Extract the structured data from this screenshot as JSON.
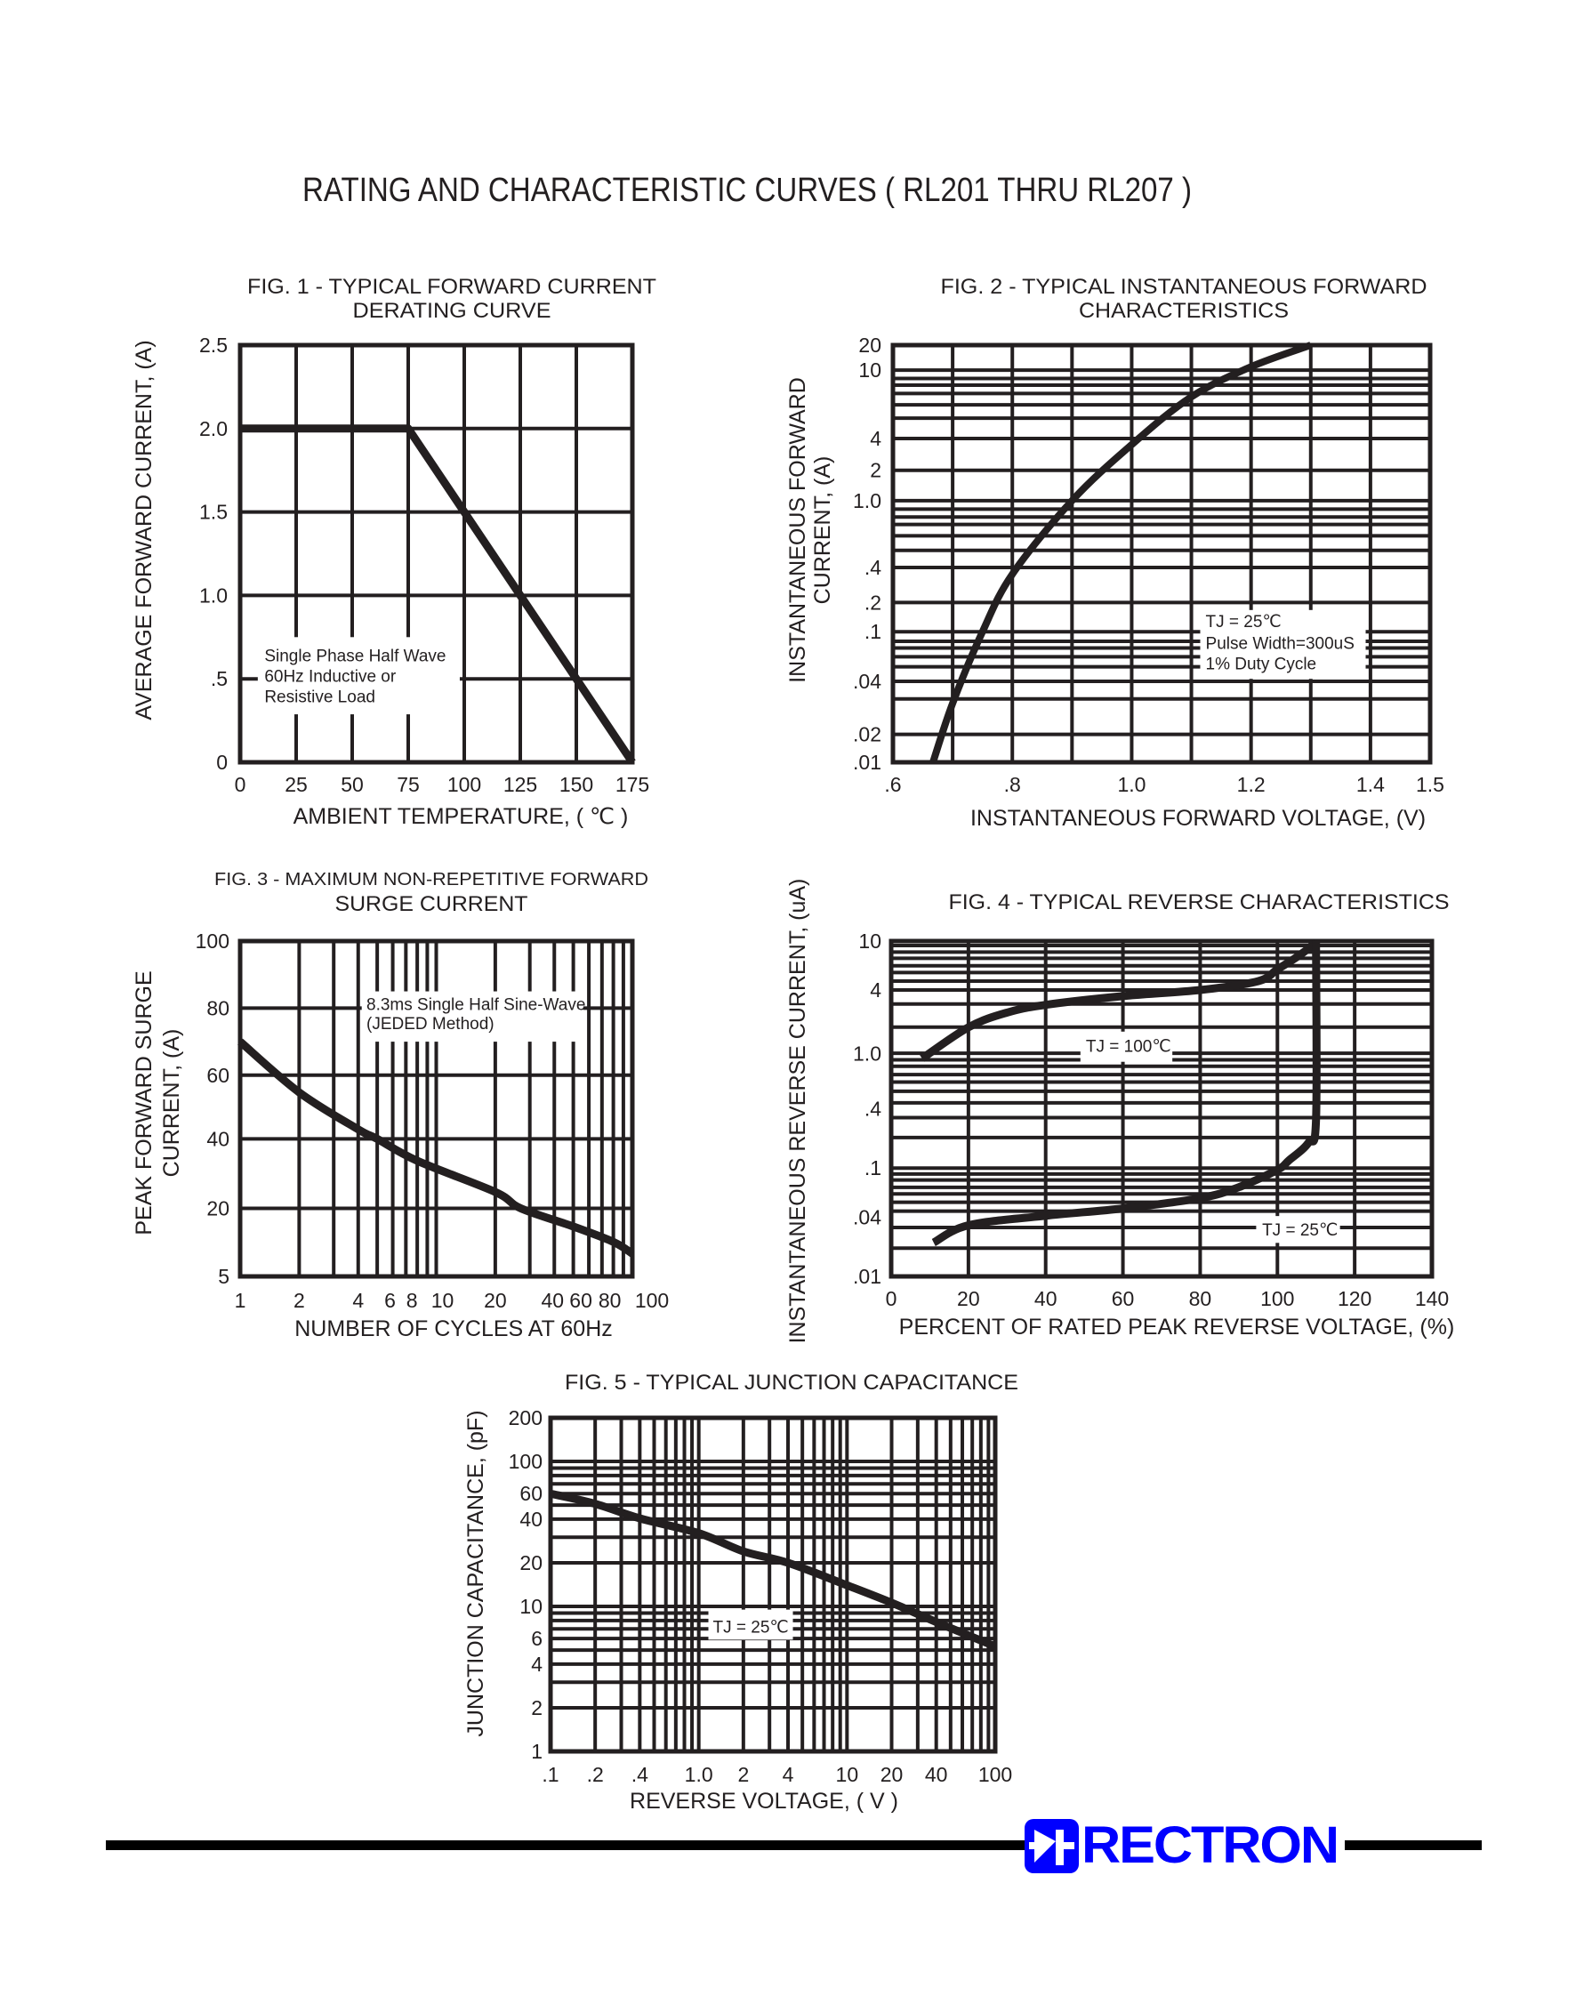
{
  "page_title": "RATING AND CHARACTERISTIC CURVES ( RL201 THRU RL207 )",
  "logo": {
    "text": "RECTRON",
    "color": "#0000ff",
    "icon": "diode-icon"
  },
  "colors": {
    "ink": "#231f20",
    "logo": "#0000ff"
  },
  "chart_data": [
    {
      "type": "line",
      "title": [
        "FIG. 1 - TYPICAL FORWARD CURRENT",
        "DERATING CURVE"
      ],
      "xlabel": "AMBIENT TEMPERATURE, ( ℃ )",
      "ylabel": [
        "AVERAGE FORWARD CURRENT, (A)"
      ],
      "x_scale": "linear",
      "y_scale": "linear",
      "xlim": [
        0,
        175
      ],
      "ylim": [
        0,
        2.5
      ],
      "grid": true,
      "xticks": [
        0,
        25,
        50,
        75,
        100,
        125,
        150,
        175
      ],
      "xtick_labels": [
        "0",
        "25",
        "50",
        "75",
        "100",
        "125",
        "150",
        "175"
      ],
      "yticks": [
        0,
        0.5,
        1.0,
        1.5,
        2.0,
        2.5
      ],
      "ytick_labels": [
        "0",
        ".5",
        "1.0",
        "1.5",
        "2.0",
        "2.5"
      ],
      "annotations": [
        [
          "Single Phase Half Wave",
          "60Hz Inductive or",
          "Resistive Load"
        ]
      ],
      "series": [
        {
          "x": [
            0,
            75,
            175
          ],
          "y": [
            2.0,
            2.0,
            0
          ]
        }
      ]
    },
    {
      "type": "line",
      "title": [
        "FIG. 2 - TYPICAL INSTANTANEOUS FORWARD",
        "CHARACTERISTICS"
      ],
      "xlabel": "INSTANTANEOUS FORWARD VOLTAGE, (V)",
      "ylabel": [
        "INSTANTANEOUS FORWARD",
        "CURRENT, (A)"
      ],
      "x_scale": "linear",
      "y_scale": "log",
      "xlim": [
        0.6,
        1.5
      ],
      "ylim": [
        0.01,
        20
      ],
      "grid": true,
      "xticks": [
        0.6,
        0.8,
        1.0,
        1.2,
        1.4,
        1.5
      ],
      "xtick_labels": [
        ".6",
        ".8",
        "1.0",
        "1.2",
        "1.4",
        "1.5"
      ],
      "yticks": [
        20,
        10,
        4,
        2,
        1.0,
        0.4,
        0.2,
        0.1,
        0.04,
        0.02,
        0.01
      ],
      "ytick_labels": [
        "20",
        "10",
        "4",
        "2",
        "1.0",
        ".4",
        ".2",
        ".1",
        ".04",
        ".02",
        ".01"
      ],
      "annotations": [
        [
          "TJ = 25℃",
          "Pulse Width=300uS",
          "1% Duty Cycle"
        ]
      ],
      "series": [
        {
          "x": [
            0.667,
            0.7,
            0.75,
            0.8,
            0.9,
            1.0,
            1.1,
            1.2,
            1.3
          ],
          "y": [
            0.01,
            0.03,
            0.1,
            0.35,
            1.0,
            3.5,
            7,
            11,
            20
          ]
        }
      ]
    },
    {
      "type": "line",
      "title": [
        "FIG. 3 - MAXIMUM NON-REPETITIVE FORWARD",
        "SURGE CURRENT"
      ],
      "xlabel": "NUMBER OF CYCLES AT 60Hz",
      "ylabel": [
        "PEAK FORWARD SURGE",
        "CURRENT, (A)"
      ],
      "x_scale": "log",
      "y_scale": "custom",
      "xlim": [
        1,
        100
      ],
      "ylim": [
        5,
        100
      ],
      "grid": true,
      "xticks": [
        1,
        2,
        4,
        6,
        8,
        10,
        20,
        40,
        60,
        80,
        100
      ],
      "xtick_labels": [
        "1",
        "2",
        "4",
        "6",
        "8",
        "10",
        "20",
        "40",
        "60",
        "80",
        "100"
      ],
      "yticks": [
        100,
        80,
        60,
        40,
        20,
        5
      ],
      "ytick_labels": [
        "100",
        "80",
        "60",
        "40",
        "20",
        "5"
      ],
      "annotations": [
        [
          "8.3ms Single Half Sine-Wave",
          "(JEDED Method)"
        ]
      ],
      "series": [
        {
          "x": [
            1,
            2,
            4,
            5,
            8,
            20,
            27,
            50,
            80,
            100
          ],
          "y": [
            70,
            54.6,
            43,
            40,
            33.7,
            24.7,
            20,
            16,
            12.6,
            10
          ]
        }
      ]
    },
    {
      "type": "line",
      "title": [
        "FIG. 4 - TYPICAL REVERSE CHARACTERISTICS"
      ],
      "xlabel": "PERCENT OF RATED PEAK REVERSE VOLTAGE, (%)",
      "ylabel": [
        "INSTANTANEOUS REVERSE CURRENT, (uA)"
      ],
      "x_scale": "linear",
      "y_scale": "log",
      "xlim": [
        0,
        140
      ],
      "ylim": [
        0.01,
        10
      ],
      "grid": true,
      "xticks": [
        0,
        20,
        40,
        60,
        80,
        100,
        120,
        140
      ],
      "xtick_labels": [
        "0",
        "20",
        "40",
        "60",
        "80",
        "100",
        "120",
        "140"
      ],
      "yticks": [
        10,
        4,
        1.0,
        0.4,
        0.1,
        0.04,
        0.01
      ],
      "ytick_labels": [
        "10",
        "4",
        "1.0",
        ".4",
        ".1",
        ".04",
        ".01"
      ],
      "annotations": [
        [
          "TJ = 100℃"
        ],
        [
          "TJ = 25℃"
        ]
      ],
      "series": [
        {
          "name": "TJ = 100℃",
          "x": [
            8,
            20,
            30,
            40,
            60,
            80,
            95,
            100,
            105,
            110
          ],
          "y": [
            0.92,
            1.77,
            2.44,
            2.89,
            3.5,
            4.0,
            4.72,
            5.9,
            7.4,
            9.7
          ]
        },
        {
          "name": "TJ = 25℃",
          "x": [
            11,
            20,
            40,
            60,
            80,
            90,
            100,
            103,
            108,
            110,
            110
          ],
          "y": [
            0.022,
            0.033,
            0.041,
            0.047,
            0.057,
            0.07,
            0.097,
            0.12,
            0.18,
            0.31,
            10
          ]
        }
      ]
    },
    {
      "type": "line",
      "title": [
        "FIG. 5 - TYPICAL JUNCTION CAPACITANCE"
      ],
      "xlabel": "REVERSE VOLTAGE, ( V )",
      "ylabel": [
        "JUNCTION CAPACITANCE, (pF)"
      ],
      "x_scale": "log",
      "y_scale": "log",
      "xlim": [
        0.1,
        100
      ],
      "ylim": [
        1,
        200
      ],
      "grid": true,
      "xticks": [
        0.1,
        0.2,
        0.4,
        1.0,
        2,
        4,
        10,
        20,
        40,
        100
      ],
      "xtick_labels": [
        ".1",
        ".2",
        ".4",
        "1.0",
        "2",
        "4",
        "10",
        "20",
        "40",
        "100"
      ],
      "yticks": [
        200,
        100,
        60,
        40,
        20,
        10,
        6,
        4,
        2,
        1
      ],
      "ytick_labels": [
        "200",
        "100",
        "60",
        "40",
        "20",
        "10",
        "6",
        "4",
        "2",
        "1"
      ],
      "annotations": [
        [
          "TJ = 25℃"
        ]
      ],
      "series": [
        {
          "x": [
            0.1,
            0.2,
            0.4,
            1,
            2,
            4,
            10,
            20,
            40,
            100
          ],
          "y": [
            60,
            51,
            40.5,
            32,
            24,
            20,
            14,
            10.6,
            7.8,
            5.3
          ]
        }
      ]
    }
  ]
}
